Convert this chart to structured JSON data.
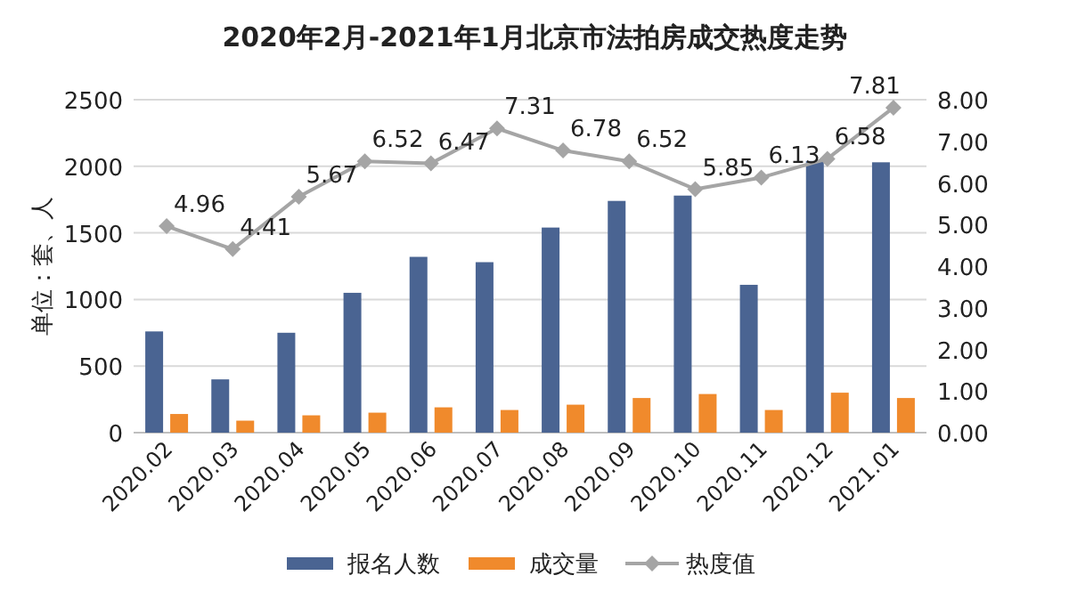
{
  "chart_data": {
    "type": "bar",
    "title": "2020年2月-2021年1月北京市法拍房成交热度走势",
    "ylabel": "单位：套、人",
    "categories": [
      "2020.02",
      "2020.03",
      "2020.04",
      "2020.05",
      "2020.06",
      "2020.07",
      "2020.08",
      "2020.09",
      "2020.10",
      "2020.11",
      "2020.12",
      "2021.01"
    ],
    "series": [
      {
        "name": "报名人数",
        "color": "#4a6492",
        "values": [
          760,
          400,
          750,
          1050,
          1320,
          1280,
          1540,
          1740,
          1780,
          1110,
          2040,
          2030
        ]
      },
      {
        "name": "成交量",
        "color": "#f08a2c",
        "values": [
          140,
          90,
          130,
          150,
          190,
          170,
          210,
          260,
          290,
          170,
          300,
          260
        ]
      },
      {
        "name": "热度值",
        "type": "line",
        "axis": "y2",
        "color": "#a5a5a5",
        "marker": "diamond",
        "values": [
          4.96,
          4.41,
          5.67,
          6.52,
          6.47,
          7.31,
          6.78,
          6.52,
          5.85,
          6.13,
          6.58,
          7.81
        ],
        "value_labels": [
          "4.96",
          "4.41",
          "5.67",
          "6.52",
          "6.47",
          "7.31",
          "6.78",
          "6.52",
          "5.85",
          "6.13",
          "6.58",
          "7.81"
        ]
      }
    ],
    "ylim": [
      0,
      2500
    ],
    "yticks": [
      0,
      500,
      1000,
      1500,
      2000,
      2500
    ],
    "y2lim": [
      0,
      8
    ],
    "y2ticks": [
      {
        "value": 0,
        "label": "0.00"
      },
      {
        "value": 1,
        "label": "1.00"
      },
      {
        "value": 2,
        "label": "2.00"
      },
      {
        "value": 3,
        "label": "3.00"
      },
      {
        "value": 4,
        "label": "4.00"
      },
      {
        "value": 5,
        "label": "5.00"
      },
      {
        "value": 6,
        "label": "6.00"
      },
      {
        "value": 7,
        "label": "7.00"
      },
      {
        "value": 8,
        "label": "8.00"
      }
    ],
    "grid": "y",
    "legend": "bottom"
  }
}
